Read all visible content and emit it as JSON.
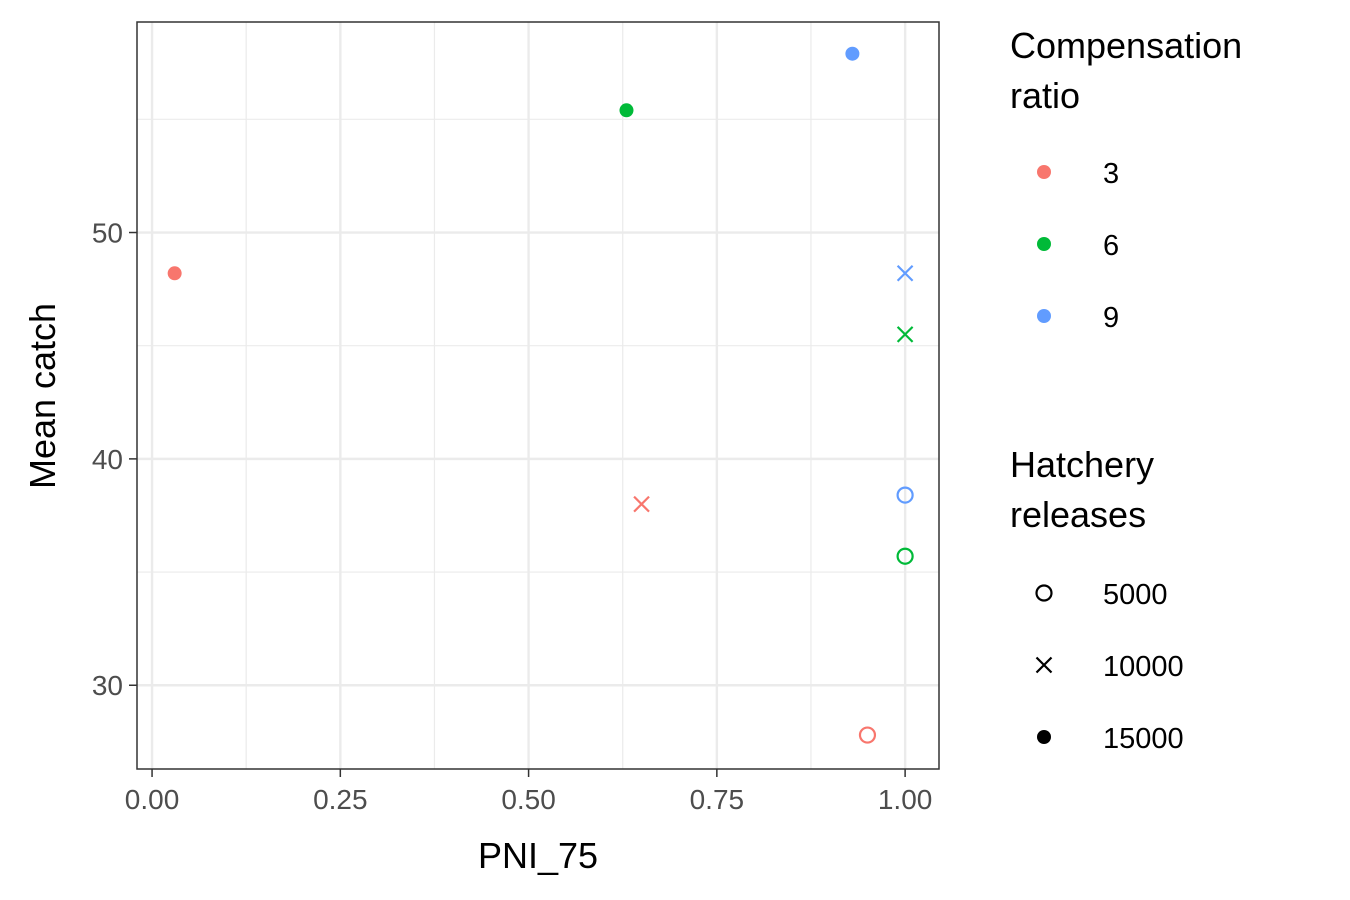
{
  "chart_data": {
    "type": "scatter",
    "xlabel": "PNI_75",
    "ylabel": "Mean catch",
    "xlim": [
      -0.02,
      1.045
    ],
    "ylim": [
      26.3,
      59.3
    ],
    "x_ticks": [
      0.0,
      0.25,
      0.5,
      0.75,
      1.0
    ],
    "x_tick_labels": [
      "0.00",
      "0.25",
      "0.50",
      "0.75",
      "1.00"
    ],
    "y_ticks": [
      30,
      40,
      50
    ],
    "y_tick_labels": [
      "30",
      "40",
      "50"
    ],
    "grid": true,
    "legend_position": "right",
    "legends": [
      {
        "title_lines": [
          "Compensation",
          "ratio"
        ],
        "aesthetic": "color",
        "entries": [
          {
            "label": "3",
            "color": "#F8766D"
          },
          {
            "label": "6",
            "color": "#00BA38"
          },
          {
            "label": "9",
            "color": "#619CFF"
          }
        ]
      },
      {
        "title_lines": [
          "Hatchery",
          "releases"
        ],
        "aesthetic": "shape",
        "entries": [
          {
            "label": "5000",
            "shape": "open-circle"
          },
          {
            "label": "10000",
            "shape": "cross"
          },
          {
            "label": "15000",
            "shape": "filled-circle"
          }
        ]
      }
    ],
    "points": [
      {
        "x": 0.03,
        "y": 48.2,
        "compensation": "3",
        "releases": "15000"
      },
      {
        "x": 0.63,
        "y": 55.4,
        "compensation": "6",
        "releases": "15000"
      },
      {
        "x": 0.93,
        "y": 57.9,
        "compensation": "9",
        "releases": "15000"
      },
      {
        "x": 0.65,
        "y": 38.0,
        "compensation": "3",
        "releases": "10000"
      },
      {
        "x": 1.0,
        "y": 45.5,
        "compensation": "6",
        "releases": "10000"
      },
      {
        "x": 1.0,
        "y": 48.2,
        "compensation": "9",
        "releases": "10000"
      },
      {
        "x": 0.95,
        "y": 27.8,
        "compensation": "3",
        "releases": "5000"
      },
      {
        "x": 1.0,
        "y": 35.7,
        "compensation": "6",
        "releases": "5000"
      },
      {
        "x": 1.0,
        "y": 38.4,
        "compensation": "9",
        "releases": "5000"
      }
    ]
  }
}
